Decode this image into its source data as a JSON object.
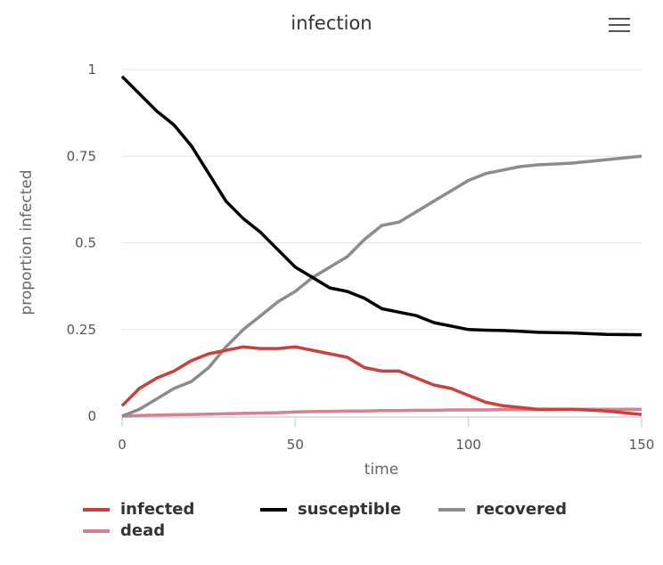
{
  "chart_data": {
    "type": "line",
    "title": "infection",
    "xlabel": "time",
    "ylabel": "proportion infected",
    "xlim": [
      0,
      150
    ],
    "ylim": [
      0,
      1
    ],
    "xticks": [
      "0",
      "50",
      "100",
      "150"
    ],
    "yticks": [
      "0",
      "0.25",
      "0.5",
      "0.75",
      "1"
    ],
    "grid": "horizontal",
    "legend": "bottom",
    "x": [
      0,
      5,
      10,
      15,
      20,
      25,
      30,
      35,
      40,
      45,
      50,
      55,
      60,
      65,
      70,
      75,
      80,
      85,
      90,
      95,
      100,
      105,
      110,
      115,
      120,
      130,
      140,
      150
    ],
    "series": [
      {
        "name": "infected",
        "color": "#c9413a",
        "values": [
          0.03,
          0.08,
          0.11,
          0.13,
          0.16,
          0.18,
          0.19,
          0.2,
          0.195,
          0.195,
          0.2,
          0.19,
          0.18,
          0.17,
          0.14,
          0.13,
          0.13,
          0.11,
          0.09,
          0.08,
          0.06,
          0.04,
          0.03,
          0.025,
          0.02,
          0.02,
          0.015,
          0.005
        ]
      },
      {
        "name": "susceptible",
        "color": "#000000",
        "values": [
          0.98,
          0.93,
          0.88,
          0.84,
          0.78,
          0.7,
          0.62,
          0.57,
          0.53,
          0.48,
          0.43,
          0.4,
          0.37,
          0.36,
          0.34,
          0.31,
          0.3,
          0.29,
          0.27,
          0.26,
          0.25,
          0.248,
          0.247,
          0.245,
          0.242,
          0.24,
          0.236,
          0.235
        ]
      },
      {
        "name": "recovered",
        "color": "#8c8c8c",
        "values": [
          0,
          0.02,
          0.05,
          0.08,
          0.1,
          0.14,
          0.2,
          0.25,
          0.29,
          0.33,
          0.36,
          0.4,
          0.43,
          0.46,
          0.51,
          0.55,
          0.56,
          0.59,
          0.62,
          0.65,
          0.68,
          0.7,
          0.71,
          0.72,
          0.725,
          0.73,
          0.74,
          0.75
        ]
      },
      {
        "name": "dead",
        "color": "#d88090",
        "values": [
          0,
          0.002,
          0.003,
          0.004,
          0.005,
          0.006,
          0.007,
          0.008,
          0.009,
          0.01,
          0.012,
          0.013,
          0.014,
          0.015,
          0.015,
          0.016,
          0.016,
          0.017,
          0.017,
          0.018,
          0.018,
          0.018,
          0.019,
          0.019,
          0.019,
          0.02,
          0.02,
          0.02
        ]
      }
    ]
  }
}
